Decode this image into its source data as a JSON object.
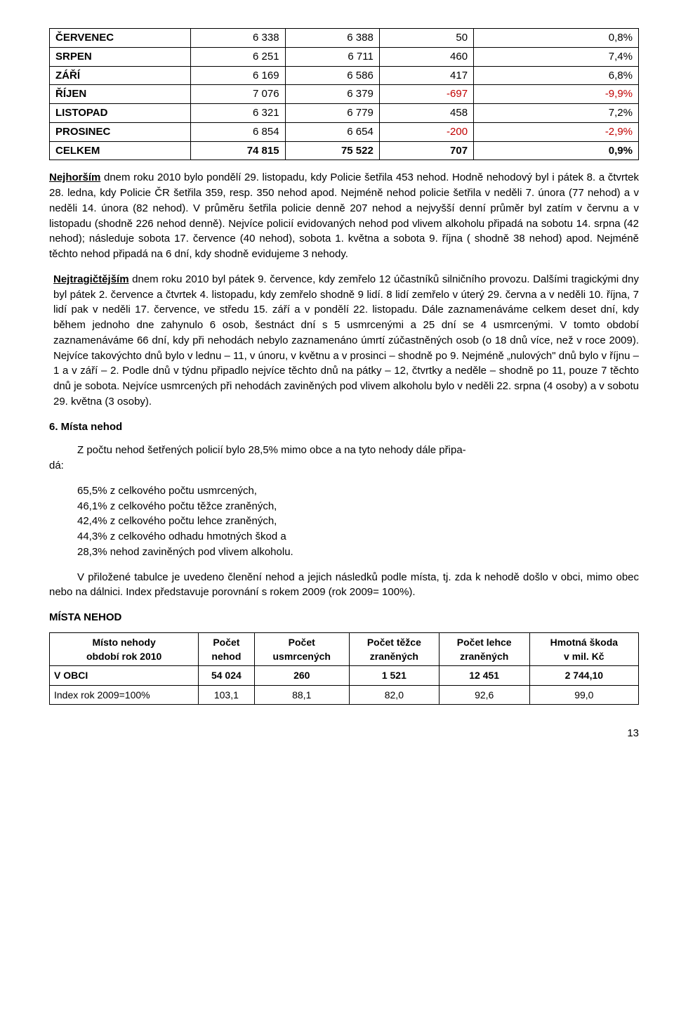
{
  "table1": {
    "col_widths": [
      "24%",
      "16%",
      "16%",
      "16%",
      "28%"
    ],
    "rows": [
      {
        "label": "ČERVENEC",
        "c1": "6 338",
        "c2": "6 388",
        "c3": "50",
        "c4": "0,8%",
        "neg": false
      },
      {
        "label": "SRPEN",
        "c1": "6 251",
        "c2": "6 711",
        "c3": "460",
        "c4": "7,4%",
        "neg": false
      },
      {
        "label": "ZÁŘÍ",
        "c1": "6 169",
        "c2": "6 586",
        "c3": "417",
        "c4": "6,8%",
        "neg": false
      },
      {
        "label": "ŘÍJEN",
        "c1": "7 076",
        "c2": "6 379",
        "c3": "-697",
        "c4": "-9,9%",
        "neg": true
      },
      {
        "label": "LISTOPAD",
        "c1": "6 321",
        "c2": "6 779",
        "c3": "458",
        "c4": "7,2%",
        "neg": false
      },
      {
        "label": "PROSINEC",
        "c1": "6 854",
        "c2": "6 654",
        "c3": "-200",
        "c4": "-2,9%",
        "neg": true
      }
    ],
    "totals": {
      "label": "CELKEM",
      "c1": "74 815",
      "c2": "75 522",
      "c3": "707",
      "c4": "0,9%"
    }
  },
  "para1_lead": "Nejhorším",
  "para1_rest": " dnem roku 2010 bylo pondělí 29. listopadu, kdy Policie šetřila 453 nehod. Hodně nehodový byl i pátek 8. a čtvrtek 28. ledna, kdy Policie ČR šetřila 359, resp. 350 nehod apod. Nejméně nehod policie šetřila v neděli 7. února (77 nehod) a v neděli 14. února (82 nehod). V průměru šetřila policie denně 207 nehod a nejvyšší denní průměr byl zatím v červnu a v listopadu (shodně 226 nehod denně). Nejvíce policií evidovaných nehod pod vlivem alkoholu připadá na sobotu 14. srpna (42 nehod); následuje sobota 17. července  (40 nehod), sobota 1. května a sobota 9. října ( shodně 38 nehod) apod. Nejméně těchto nehod připadá na 6 dní, kdy shodně evidujeme 3 nehody.",
  "para2_lead": "Nejtragičtějším",
  "para2_rest": " dnem roku 2010 byl pátek 9. července, kdy zemřelo 12 účastníků silničního provozu. Dalšími tragickými dny byl pátek 2. července a čtvrtek 4. listopadu, kdy zemřelo shodně 9 lidí. 8 lidí zemřelo v úterý 29. června a v neděli 10. října, 7 lidí pak v neděli 17. července, ve středu 15. září a v pondělí 22. listopadu. Dále zaznamenáváme celkem deset dní, kdy během jednoho dne zahynulo 6 osob, šestnáct dní s 5 usmrcenými a 25 dní se 4 usmrcenými. V tomto období zaznamenáváme 66 dní, kdy při nehodách nebylo zaznamenáno úmrtí zúčastněných osob (o 18 dnů více, než v roce 2009). Nejvíce takovýchto dnů bylo v lednu – 11, v únoru, v květnu a v prosinci – shodně po 9. Nejméně „nulových\" dnů bylo v říjnu – 1 a v září – 2. Podle dnů v týdnu připadlo nejvíce těchto dnů na pátky – 12, čtvrtky a neděle – shodně po 11, pouze 7 těchto dnů je sobota. Nejvíce usmrcených při nehodách zaviněných pod vlivem alkoholu bylo v neděli 22. srpna (4 osoby) a v sobotu 29. května (3 osoby).",
  "section6_title": "6. Místa nehod",
  "da_label": "dá:",
  "da_intro": "Z  počtu nehod šetřených policií bylo 28,5% mimo obce a na tyto nehody dále připa-",
  "bullets": [
    "65,5% z celkového počtu usmrcených,",
    "46,1% z celkového počtu těžce zraněných,",
    "42,4% z celkového počtu lehce zraněných,",
    "44,3% z celkového odhadu hmotných škod a",
    "28,3% nehod zaviněných pod vlivem alkoholu."
  ],
  "para3": "V přiložené tabulce je uvedeno členění nehod a jejich následků podle místa, tj. zda k nehodě došlo v obci, mimo obec nebo na dálnici. Index představuje porovnání s rokem 2009 (rok 2009= 100%).",
  "mista_title": "MÍSTA NEHOD",
  "mista_headers": [
    "Místo nehody\nobdobí  rok 2010",
    "Počet\nnehod",
    "Počet\nusmrcených",
    "Počet těžce\nzraněných",
    "Počet lehce\nzraněných",
    "Hmotná škoda\nv mil. Kč"
  ],
  "mista_rows": [
    {
      "label": "V OBCI",
      "c": [
        "54 024",
        "260",
        "1 521",
        "12 451",
        "2 744,10"
      ],
      "bold": true
    },
    {
      "label": "Index rok 2009=100%",
      "c": [
        "103,1",
        "88,1",
        "82,0",
        "92,6",
        "99,0"
      ],
      "bold": false
    }
  ],
  "page_number": "13"
}
